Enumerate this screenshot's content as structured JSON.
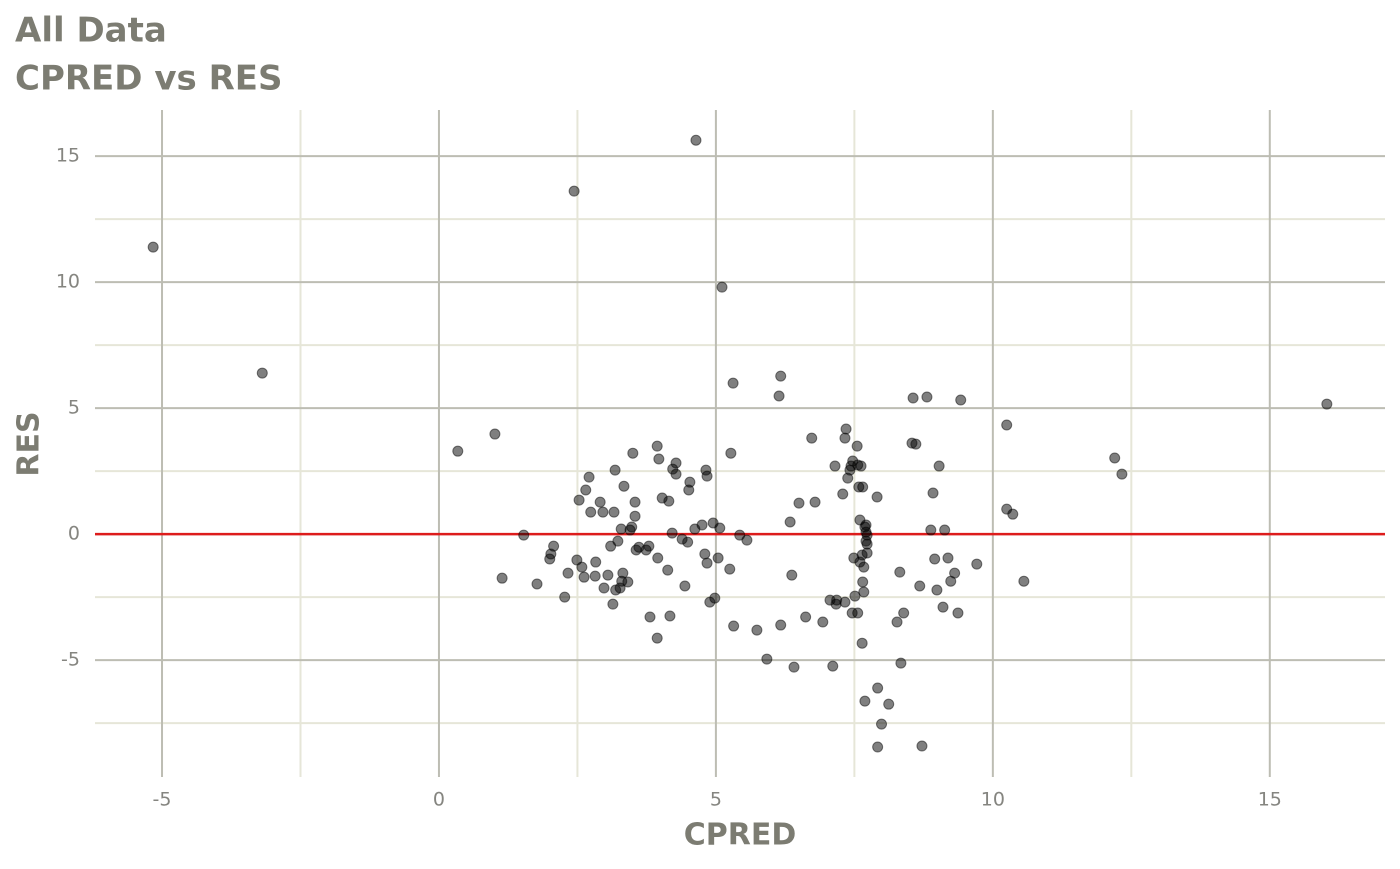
{
  "chart_data": {
    "type": "scatter",
    "title": "All Data",
    "subtitle": "CPRED vs RES",
    "x_label": "CPRED",
    "y_label": "RES",
    "xlim": [
      -6.21,
      17.08
    ],
    "ylim": [
      -9.64,
      16.83
    ],
    "xticks": [
      -5,
      0,
      5,
      10,
      15
    ],
    "yticks": [
      -5,
      0,
      5,
      10,
      15
    ],
    "x_minor_ticks": [
      -2.5,
      2.5,
      7.5,
      12.5
    ],
    "y_minor_ticks": [
      -7.5,
      -2.5,
      2.5,
      7.5,
      12.5
    ],
    "grid": true,
    "point_color": "#000000",
    "point_opacity": 0.5,
    "reference_line": {
      "y": 0,
      "color": "#dd1c1c"
    },
    "x": [
      -5.16,
      -3.19,
      2.44,
      4.64,
      5.11,
      0.34,
      1.01,
      1.53,
      1.14,
      1.77,
      2.0,
      2.02,
      2.07,
      2.27,
      2.33,
      2.49,
      2.53,
      2.58,
      2.62,
      2.65,
      2.71,
      2.74,
      2.82,
      2.83,
      2.91,
      2.96,
      2.98,
      3.05,
      3.1,
      3.14,
      3.16,
      3.18,
      3.19,
      3.23,
      3.27,
      3.29,
      3.3,
      3.32,
      3.34,
      3.41,
      3.45,
      3.48,
      3.5,
      3.54,
      3.54,
      3.56,
      3.61,
      3.74,
      3.79,
      3.81,
      3.94,
      3.94,
      3.95,
      3.97,
      4.03,
      4.13,
      4.15,
      4.17,
      4.21,
      4.22,
      4.28,
      4.28,
      4.39,
      4.44,
      4.49,
      4.51,
      4.53,
      4.62,
      4.75,
      4.8,
      4.82,
      4.84,
      4.84,
      4.89,
      4.95,
      4.98,
      5.04,
      5.07,
      5.25,
      5.27,
      5.31,
      5.32,
      5.43,
      5.56,
      5.74,
      5.92,
      6.14,
      6.17,
      6.17,
      6.34,
      6.37,
      6.41,
      6.5,
      6.62,
      6.73,
      6.79,
      6.93,
      7.06,
      7.11,
      7.15,
      7.17,
      7.18,
      7.29,
      7.33,
      7.33,
      7.35,
      7.38,
      7.42,
      7.44,
      7.46,
      7.47,
      7.49,
      7.51,
      7.55,
      7.56,
      7.56,
      7.58,
      7.6,
      7.6,
      7.62,
      7.64,
      7.64,
      7.65,
      7.65,
      7.67,
      7.67,
      7.69,
      7.69,
      7.71,
      7.71,
      7.71,
      7.73,
      7.73,
      7.73,
      7.91,
      7.92,
      7.92,
      7.99,
      8.12,
      8.27,
      8.32,
      8.34,
      8.39,
      8.54,
      8.56,
      8.61,
      8.68,
      8.72,
      8.81,
      8.88,
      8.92,
      8.95,
      8.99,
      9.03,
      9.1,
      9.13,
      9.19,
      9.24,
      9.31,
      9.37,
      9.42,
      9.71,
      10.25,
      10.25,
      10.36,
      10.56,
      12.2,
      12.33,
      16.03
    ],
    "values": [
      11.39,
      6.39,
      13.61,
      15.63,
      9.8,
      3.29,
      3.97,
      -0.04,
      -1.75,
      -1.98,
      -0.99,
      -0.79,
      -0.48,
      -2.5,
      -1.55,
      -1.03,
      1.35,
      -1.31,
      -1.71,
      1.75,
      2.26,
      0.87,
      -1.67,
      -1.11,
      1.27,
      0.87,
      -2.14,
      -1.63,
      -0.48,
      -2.78,
      0.87,
      2.54,
      -2.22,
      -0.28,
      -2.14,
      0.2,
      -1.87,
      -1.55,
      1.9,
      -1.9,
      0.16,
      0.28,
      3.21,
      1.27,
      0.71,
      -0.63,
      -0.52,
      -0.63,
      -0.48,
      -3.29,
      3.49,
      -4.13,
      -0.95,
      2.98,
      1.43,
      -1.43,
      1.31,
      -3.25,
      0.04,
      2.58,
      2.82,
      2.38,
      -0.2,
      -2.06,
      -0.32,
      1.75,
      2.06,
      0.2,
      0.36,
      -0.79,
      2.54,
      2.3,
      -1.15,
      -2.7,
      0.44,
      -2.54,
      -0.95,
      0.24,
      -1.39,
      3.21,
      5.99,
      -3.65,
      -0.04,
      -0.24,
      -3.81,
      -4.96,
      5.48,
      6.27,
      -3.61,
      0.48,
      -1.63,
      -5.28,
      1.23,
      -3.29,
      3.81,
      1.27,
      -3.49,
      -2.62,
      -5.24,
      2.7,
      -2.78,
      -2.62,
      1.59,
      3.81,
      -2.7,
      4.17,
      2.22,
      2.54,
      2.7,
      -3.13,
      2.9,
      -0.95,
      -2.46,
      3.49,
      -3.13,
      2.74,
      1.87,
      -1.11,
      0.56,
      2.7,
      -0.83,
      -4.33,
      1.87,
      -1.9,
      -2.3,
      -1.31,
      0.28,
      -6.63,
      -0.28,
      0.36,
      0.08,
      -0.75,
      -0.4,
      -0.04,
      1.47,
      -6.11,
      -8.45,
      -7.54,
      -6.75,
      -3.49,
      -1.51,
      -5.12,
      -3.13,
      3.61,
      5.4,
      3.57,
      -2.06,
      -8.41,
      5.44,
      0.16,
      1.63,
      -0.99,
      -2.22,
      2.7,
      -2.9,
      0.16,
      -0.95,
      -1.87,
      -1.55,
      -3.13,
      5.32,
      -1.19,
      4.33,
      0.99,
      0.79,
      -1.87,
      3.02,
      2.38,
      5.16
    ]
  }
}
